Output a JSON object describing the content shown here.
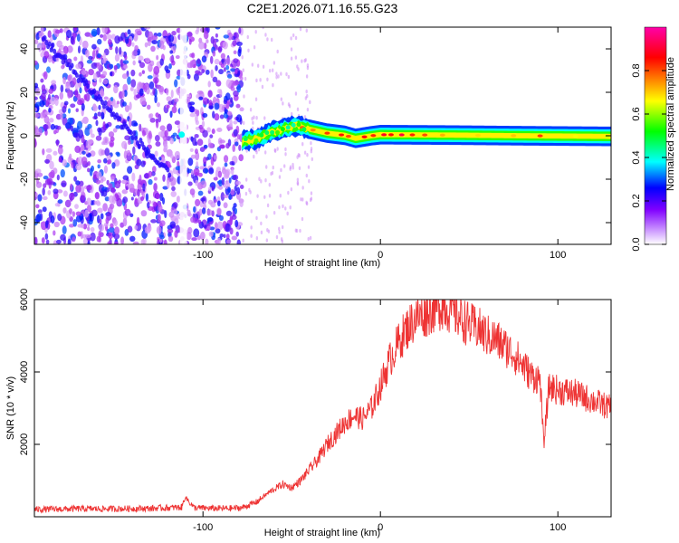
{
  "figure_title": "C2E1.2026.071.16.55.G23",
  "chart_data": [
    {
      "type": "heatmap",
      "title": "C2E1.2026.071.16.55.G23",
      "xlabel": "Height of straight line (km)",
      "ylabel": "Frequency (Hz)",
      "xlim": [
        -195,
        130
      ],
      "ylim": [
        -50,
        50
      ],
      "x_ticks": [
        -100,
        0,
        100
      ],
      "x_tick_labels": [
        "-100",
        "0",
        "100"
      ],
      "y_ticks": [
        -40,
        -20,
        0,
        20,
        40
      ],
      "y_tick_labels": [
        "-40",
        "-20",
        "0",
        "20",
        "40"
      ],
      "colorbar": {
        "label": "Normalized spectral amplitude",
        "range": [
          0,
          1
        ],
        "ticks": [
          0.0,
          0.2,
          0.4,
          0.6,
          0.8
        ],
        "tick_labels": [
          "0.0",
          "0.2",
          "0.4",
          "0.6",
          "0.8"
        ],
        "colormap": [
          "#ffffff",
          "#a020f0",
          "#0000ff",
          "#00ffff",
          "#00ff00",
          "#ffff00",
          "#ff8000",
          "#ff0000",
          "#ff00aa"
        ]
      },
      "signal_track": {
        "description": "narrow band near 0 Hz",
        "points": [
          [
            -110,
            0.5
          ],
          [
            -78,
            -2.5
          ],
          [
            -70,
            -1.5
          ],
          [
            -62,
            1.5
          ],
          [
            -55,
            3
          ],
          [
            -47,
            4.5
          ],
          [
            -40,
            3
          ],
          [
            -30,
            1.2
          ],
          [
            -20,
            0.2
          ],
          [
            -14,
            -1.2
          ],
          [
            -5,
            0
          ],
          [
            0,
            0.5
          ],
          [
            40,
            0.3
          ],
          [
            80,
            0
          ],
          [
            130,
            -0.3
          ]
        ],
        "noise_region_x": [
          -195,
          -78
        ]
      }
    },
    {
      "type": "line",
      "xlabel": "Height of straight line (km)",
      "ylabel": "SNR (10 * v/v)",
      "xlim": [
        -195,
        130
      ],
      "ylim": [
        0,
        6000
      ],
      "x_ticks": [
        -100,
        0,
        100
      ],
      "x_tick_labels": [
        "-100",
        "0",
        "100"
      ],
      "y_ticks": [
        2000,
        4000,
        6000
      ],
      "y_tick_labels": [
        "2000",
        "4000",
        "6000"
      ],
      "series": [
        {
          "name": "SNR",
          "color": "#ee3333",
          "x": [
            -195,
            -170,
            -150,
            -130,
            -112,
            -110,
            -105,
            -95,
            -85,
            -78,
            -70,
            -62,
            -55,
            -50,
            -45,
            -40,
            -35,
            -30,
            -25,
            -20,
            -15,
            -10,
            -5,
            0,
            5,
            10,
            15,
            20,
            25,
            30,
            35,
            40,
            45,
            50,
            55,
            60,
            65,
            70,
            75,
            80,
            85,
            90,
            92,
            95,
            100,
            105,
            110,
            115,
            120,
            125,
            130
          ],
          "y": [
            200,
            220,
            220,
            230,
            260,
            550,
            250,
            230,
            230,
            250,
            400,
            700,
            900,
            800,
            1000,
            1300,
            1600,
            2000,
            2300,
            2600,
            2800,
            2700,
            3000,
            3600,
            4300,
            4800,
            5200,
            5500,
            5600,
            5750,
            5850,
            5700,
            5500,
            5300,
            5200,
            5000,
            4900,
            4700,
            4500,
            4200,
            3900,
            3800,
            2000,
            3600,
            3500,
            3450,
            3400,
            3300,
            3200,
            3100,
            3000
          ]
        }
      ]
    }
  ]
}
